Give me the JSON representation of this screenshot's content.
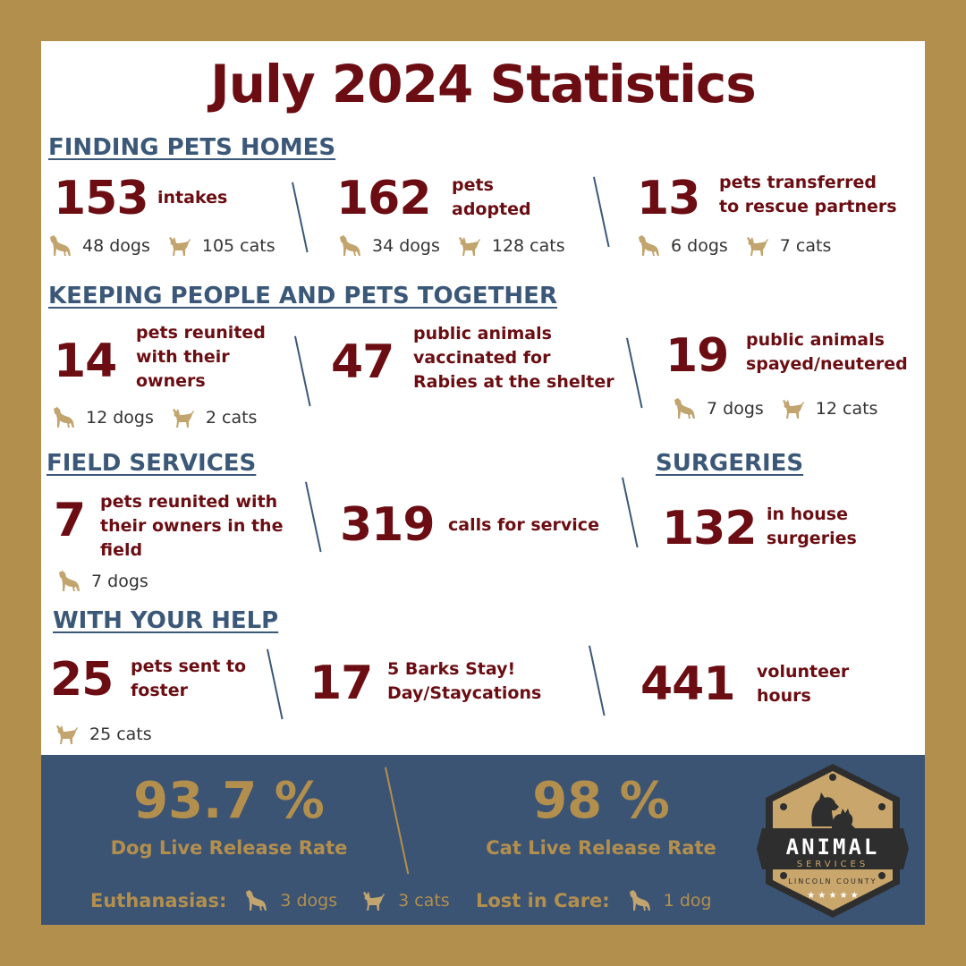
{
  "title": "July 2024 Statistics",
  "colors": {
    "border": "#B38F4E",
    "accent": "#6B0D12",
    "heading": "#3B5878",
    "footer_bg": "#3B5474"
  },
  "finding": {
    "heading": "FINDING PETS HOMES",
    "intakes": {
      "num": "153",
      "label": "intakes",
      "dogs": "48 dogs",
      "cats": "105 cats"
    },
    "adopted": {
      "num": "162",
      "label1": "pets",
      "label2": "adopted",
      "dogs": "34 dogs",
      "cats": "128 cats"
    },
    "transferred": {
      "num": "13",
      "label1": "pets transferred",
      "label2": "to rescue partners",
      "dogs": "6 dogs",
      "cats": "7 cats"
    }
  },
  "keeping": {
    "heading": "KEEPING PEOPLE AND PETS TOGETHER",
    "reunited": {
      "num": "14",
      "label1": "pets reunited",
      "label2": "with their",
      "label3": "owners",
      "dogs": "12 dogs",
      "cats": "2 cats"
    },
    "vaccinated": {
      "num": "47",
      "label1": "public animals",
      "label2": "vaccinated for",
      "label3": "Rabies at the shelter"
    },
    "spayed": {
      "num": "19",
      "label1": "public animals",
      "label2": "spayed/neutered",
      "dogs": "7 dogs",
      "cats": "12 cats"
    }
  },
  "field": {
    "heading": "FIELD SERVICES",
    "reunited": {
      "num": "7",
      "label1": "pets reunited with",
      "label2": "their owners in the",
      "label3": "field",
      "dogs": "7 dogs"
    },
    "calls": {
      "num": "319",
      "label": "calls for service"
    }
  },
  "surgeries": {
    "heading": "SURGERIES",
    "inhouse": {
      "num": "132",
      "label1": "in house",
      "label2": "surgeries"
    }
  },
  "help": {
    "heading": "WITH YOUR HELP",
    "foster": {
      "num": "25",
      "label1": "pets sent to",
      "label2": "foster",
      "cats": "25 cats"
    },
    "barks": {
      "num": "17",
      "label1": "5 Barks Stay!",
      "label2": "Day/Staycations"
    },
    "volunteer": {
      "num": "441",
      "label1": "volunteer",
      "label2": "hours"
    }
  },
  "footer": {
    "dog_rate": "93.7 %",
    "dog_label": "Dog Live Release Rate",
    "cat_rate": "98 %",
    "cat_label": "Cat Live Release Rate",
    "euth_label": "Euthanasias:",
    "euth_dogs": "3 dogs",
    "euth_cats": "3 cats",
    "lost_label": "Lost in Care:",
    "lost_dogs": "1 dog"
  },
  "logo": {
    "line1": "ANIMAL",
    "line2": "SERVICES",
    "line3": "LINCOLN COUNTY"
  },
  "icons": {
    "dog": "dog-icon",
    "cat": "cat-icon"
  }
}
